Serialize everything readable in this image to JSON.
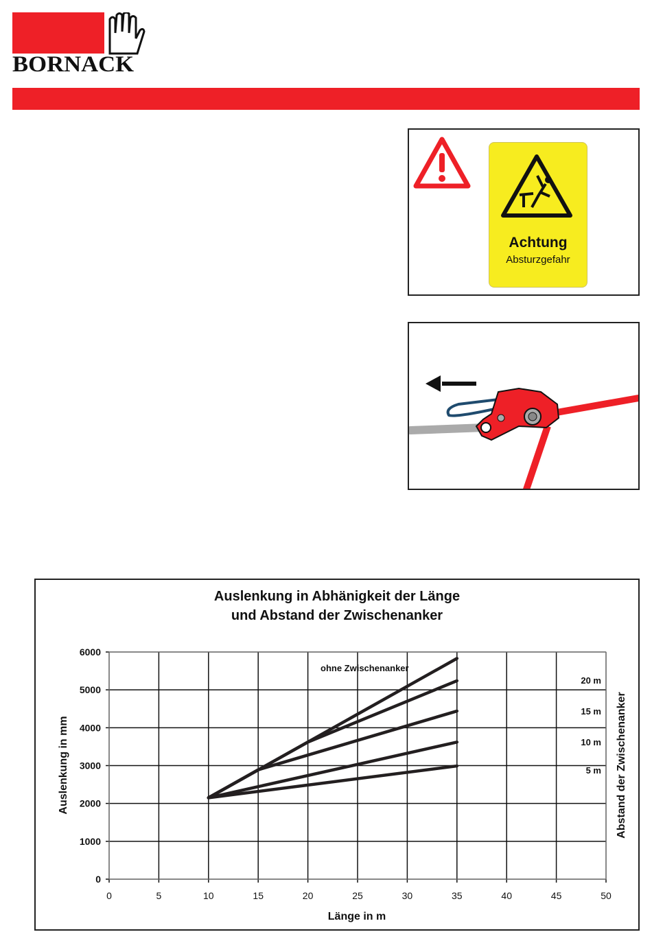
{
  "brand": {
    "name": "BORNACK",
    "color": "#ee2027"
  },
  "warning_sign": {
    "title": "Achtung",
    "subtitle": "Absturzgefahr",
    "icon": "fall-hazard-icon",
    "background": "#f7ec1f"
  },
  "chart_data": {
    "type": "line",
    "title_line1": "Auslenkung in Abhänigkeit der Länge",
    "title_line2": "und Abstand der Zwischenanker",
    "xlabel": "Länge in m",
    "ylabel": "Auslenkung in mm",
    "right_label": "Abstand der Zwischenanker",
    "xlim": [
      0,
      50
    ],
    "ylim": [
      0,
      6000
    ],
    "xticks": [
      "0",
      "5",
      "10",
      "15",
      "20",
      "25",
      "30",
      "35",
      "40",
      "45",
      "50"
    ],
    "yticks": [
      "0",
      "1000",
      "2000",
      "3000",
      "4000",
      "5000",
      "6000"
    ],
    "grid": true,
    "series": [
      {
        "name": "ohne Zwischenanker",
        "x": [
          10,
          35
        ],
        "y": [
          2150,
          5830
        ]
      },
      {
        "name": "20 m",
        "x": [
          10,
          20,
          35
        ],
        "y": [
          2150,
          3620,
          5240
        ]
      },
      {
        "name": "15 m",
        "x": [
          10,
          15,
          35
        ],
        "y": [
          2150,
          2890,
          4440
        ]
      },
      {
        "name": "10 m",
        "x": [
          10,
          35
        ],
        "y": [
          2150,
          3620
        ]
      },
      {
        "name": "5 m",
        "x": [
          10,
          35
        ],
        "y": [
          2150,
          2990
        ]
      }
    ]
  }
}
